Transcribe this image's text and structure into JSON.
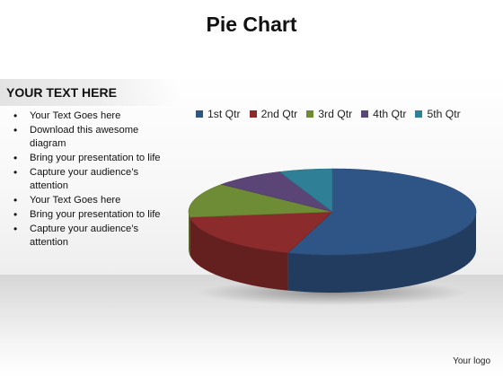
{
  "title": "Pie Chart",
  "sidebar": {
    "heading": "YOUR TEXT HERE",
    "bullets": [
      "Your Text Goes here",
      "Download this awesome diagram",
      "Bring your presentation to life",
      "Capture your audience’s attention",
      "Your Text Goes here",
      "Bring your presentation to life",
      "Capture your audience’s attention"
    ]
  },
  "logo_text": "Your logo",
  "chart_data": {
    "type": "pie",
    "style": "3d",
    "title": "",
    "legend_position": "top",
    "categories": [
      "1st Qtr",
      "2nd Qtr",
      "3rd Qtr",
      "4th Qtr",
      "5th Qtr"
    ],
    "values": [
      55,
      18,
      13,
      8,
      6
    ],
    "colors": [
      "#2f5486",
      "#8b2b2b",
      "#6e8b35",
      "#5a4576",
      "#2f7f96"
    ]
  }
}
